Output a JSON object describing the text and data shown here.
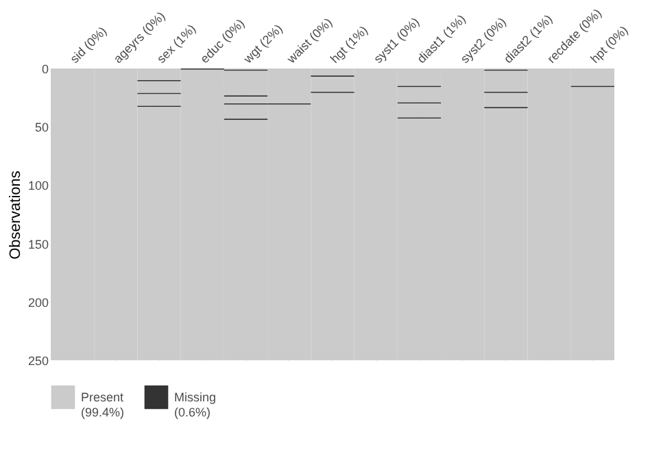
{
  "chart_data": {
    "type": "bar",
    "stacked": true,
    "ylabel": "Observations",
    "categories": [
      "sid (0%)",
      "ageyrs (0%)",
      "sex (1%)",
      "educ (0%)",
      "wgt (2%)",
      "waist (0%)",
      "hgt (1%)",
      "syst1 (0%)",
      "diast1 (1%)",
      "syst2 (0%)",
      "diast2 (1%)",
      "recdate (0%)",
      "hpt (0%)"
    ],
    "ylim": [
      250,
      0
    ],
    "yticks": [
      0,
      50,
      100,
      150,
      200,
      250
    ],
    "grid": "x",
    "legend": "bottom",
    "series": [
      {
        "name": "Present (99.4%)",
        "color": "#cbcbcb",
        "values": [
          250,
          250,
          10,
          0,
          1,
          30,
          6,
          250,
          15,
          250,
          1,
          250,
          15
        ]
      },
      {
        "name": "Missing (0.6%)",
        "color": "#333333",
        "values": [
          null,
          null,
          1,
          1,
          1,
          1,
          1,
          null,
          1,
          null,
          1,
          null,
          1
        ]
      },
      {
        "color": "#cbcbcb",
        "values": [
          null,
          null,
          10,
          249,
          21,
          219,
          13,
          null,
          13,
          null,
          18,
          null,
          234
        ]
      },
      {
        "color": "#333333",
        "values": [
          null,
          null,
          1,
          null,
          1,
          null,
          1,
          null,
          1,
          null,
          1,
          null,
          null
        ]
      },
      {
        "color": "#cbcbcb",
        "values": [
          null,
          null,
          10,
          null,
          6,
          null,
          229,
          null,
          12,
          null,
          12,
          null,
          null
        ]
      },
      {
        "color": "#333333",
        "values": [
          null,
          null,
          1,
          null,
          1,
          null,
          null,
          null,
          1,
          null,
          1,
          null,
          null
        ]
      },
      {
        "color": "#cbcbcb",
        "values": [
          null,
          null,
          217,
          null,
          12,
          null,
          null,
          null,
          207,
          null,
          216,
          null,
          null
        ]
      },
      {
        "color": "#333333",
        "values": [
          null,
          null,
          null,
          null,
          1,
          null,
          null,
          null,
          null,
          null,
          null,
          null,
          null
        ]
      },
      {
        "color": "#cbcbcb",
        "values": [
          null,
          null,
          null,
          null,
          206,
          null,
          null,
          null,
          null,
          null,
          null,
          null,
          null
        ]
      }
    ]
  }
}
